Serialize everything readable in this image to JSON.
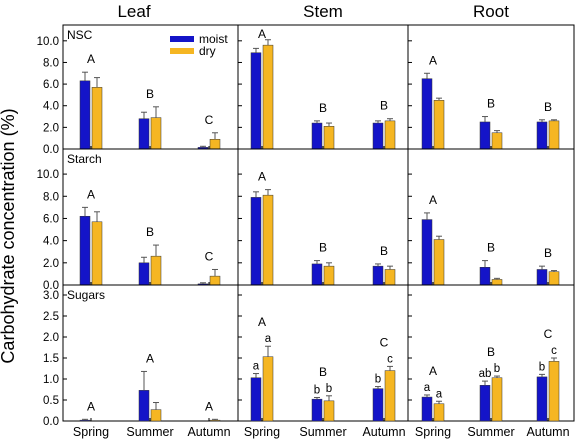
{
  "figure": {
    "ylabel": "Carbohydrate concentration (%)",
    "columns": [
      "Leaf",
      "Stem",
      "Root"
    ],
    "rows": [
      "NSC",
      "Starch",
      "Sugars"
    ],
    "seasons": [
      "Spring",
      "Summer",
      "Autumn"
    ],
    "legend": {
      "placement": "top-right of top-left panel",
      "items": [
        {
          "label": "moist",
          "color": "#1414c8"
        },
        {
          "label": "dry",
          "color": "#f5b622"
        }
      ]
    },
    "colors": {
      "moist": "#1414c8",
      "dry": "#f5b622"
    },
    "row_axes": [
      {
        "ylim": [
          0,
          11
        ],
        "ticks": [
          "0.0",
          "2.0",
          "4.0",
          "6.0",
          "8.0",
          "10.0"
        ]
      },
      {
        "ylim": [
          0,
          11
        ],
        "ticks": [
          "0.0",
          "2.0",
          "4.0",
          "6.0",
          "8.0",
          "10.0"
        ]
      },
      {
        "ylim": [
          0,
          3.0
        ],
        "ticks": [
          "0.0",
          "0.5",
          "1.0",
          "1.5",
          "2.0",
          "2.5",
          "3.0"
        ]
      }
    ]
  },
  "chart_data": [
    {
      "type": "bar",
      "tissue": "Leaf",
      "variable": "NSC",
      "categories": [
        "Spring",
        "Summer",
        "Autumn"
      ],
      "series": [
        {
          "name": "moist",
          "values": [
            6.3,
            2.8,
            0.15
          ],
          "errors": [
            0.8,
            0.6,
            0.1
          ]
        },
        {
          "name": "dry",
          "values": [
            5.7,
            2.9,
            0.9
          ],
          "errors": [
            0.9,
            1.0,
            0.6
          ]
        }
      ],
      "group_letters": [
        "A",
        "B",
        "C"
      ],
      "bar_letters": []
    },
    {
      "type": "bar",
      "tissue": "Stem",
      "variable": "NSC",
      "categories": [
        "Spring",
        "Summer",
        "Autumn"
      ],
      "series": [
        {
          "name": "moist",
          "values": [
            8.9,
            2.4,
            2.4
          ],
          "errors": [
            0.4,
            0.2,
            0.2
          ]
        },
        {
          "name": "dry",
          "values": [
            9.6,
            2.1,
            2.6
          ],
          "errors": [
            0.5,
            0.3,
            0.2
          ]
        }
      ],
      "group_letters": [
        "A",
        "B",
        "B"
      ],
      "bar_letters": []
    },
    {
      "type": "bar",
      "tissue": "Root",
      "variable": "NSC",
      "categories": [
        "Spring",
        "Summer",
        "Autumn"
      ],
      "series": [
        {
          "name": "moist",
          "values": [
            6.5,
            2.5,
            2.5
          ],
          "errors": [
            0.5,
            0.5,
            0.2
          ]
        },
        {
          "name": "dry",
          "values": [
            4.5,
            1.5,
            2.6
          ],
          "errors": [
            0.2,
            0.2,
            0.1
          ]
        }
      ],
      "group_letters": [
        "A",
        "B",
        "B"
      ],
      "bar_letters": []
    },
    {
      "type": "bar",
      "tissue": "Leaf",
      "variable": "Starch",
      "categories": [
        "Spring",
        "Summer",
        "Autumn"
      ],
      "series": [
        {
          "name": "moist",
          "values": [
            6.2,
            2.0,
            0.1
          ],
          "errors": [
            0.8,
            0.5,
            0.1
          ]
        },
        {
          "name": "dry",
          "values": [
            5.7,
            2.6,
            0.8
          ],
          "errors": [
            0.9,
            1.0,
            0.6
          ]
        }
      ],
      "group_letters": [
        "A",
        "B",
        "C"
      ],
      "bar_letters": []
    },
    {
      "type": "bar",
      "tissue": "Stem",
      "variable": "Starch",
      "categories": [
        "Spring",
        "Summer",
        "Autumn"
      ],
      "series": [
        {
          "name": "moist",
          "values": [
            7.9,
            1.9,
            1.7
          ],
          "errors": [
            0.5,
            0.3,
            0.2
          ]
        },
        {
          "name": "dry",
          "values": [
            8.1,
            1.7,
            1.4
          ],
          "errors": [
            0.5,
            0.3,
            0.3
          ]
        }
      ],
      "group_letters": [
        "A",
        "B",
        "B"
      ],
      "bar_letters": []
    },
    {
      "type": "bar",
      "tissue": "Root",
      "variable": "Starch",
      "categories": [
        "Spring",
        "Summer",
        "Autumn"
      ],
      "series": [
        {
          "name": "moist",
          "values": [
            5.9,
            1.6,
            1.4
          ],
          "errors": [
            0.6,
            0.6,
            0.3
          ]
        },
        {
          "name": "dry",
          "values": [
            4.1,
            0.5,
            1.2
          ],
          "errors": [
            0.3,
            0.1,
            0.1
          ]
        }
      ],
      "group_letters": [
        "A",
        "B",
        "B"
      ],
      "bar_letters": []
    },
    {
      "type": "bar",
      "tissue": "Leaf",
      "variable": "Sugars",
      "categories": [
        "Spring",
        "Summer",
        "Autumn"
      ],
      "series": [
        {
          "name": "moist",
          "values": [
            0.02,
            0.73,
            0.0
          ],
          "errors": [
            0.02,
            0.45,
            0.0
          ]
        },
        {
          "name": "dry",
          "values": [
            0.0,
            0.27,
            0.02
          ],
          "errors": [
            0.0,
            0.17,
            0.02
          ]
        }
      ],
      "group_letters": [
        "A",
        "A",
        "A"
      ],
      "bar_letters": []
    },
    {
      "type": "bar",
      "tissue": "Stem",
      "variable": "Sugars",
      "categories": [
        "Spring",
        "Summer",
        "Autumn"
      ],
      "series": [
        {
          "name": "moist",
          "values": [
            1.03,
            0.52,
            0.77
          ],
          "errors": [
            0.1,
            0.04,
            0.05
          ]
        },
        {
          "name": "dry",
          "values": [
            1.53,
            0.48,
            1.2
          ],
          "errors": [
            0.25,
            0.12,
            0.1
          ]
        }
      ],
      "group_letters": [
        "A",
        "B",
        "C"
      ],
      "bar_letters": [
        [
          "a",
          "b",
          "b"
        ],
        [
          "a",
          "b",
          "c"
        ]
      ]
    },
    {
      "type": "bar",
      "tissue": "Root",
      "variable": "Sugars",
      "categories": [
        "Spring",
        "Summer",
        "Autumn"
      ],
      "series": [
        {
          "name": "moist",
          "values": [
            0.57,
            0.85,
            1.05
          ],
          "errors": [
            0.05,
            0.1,
            0.06
          ]
        },
        {
          "name": "dry",
          "values": [
            0.41,
            1.03,
            1.42
          ],
          "errors": [
            0.06,
            0.04,
            0.08
          ]
        }
      ],
      "group_letters": [
        "A",
        "B",
        "C"
      ],
      "bar_letters": [
        [
          "a",
          "ab",
          "b"
        ],
        [
          "a",
          "b",
          "c"
        ]
      ]
    }
  ]
}
